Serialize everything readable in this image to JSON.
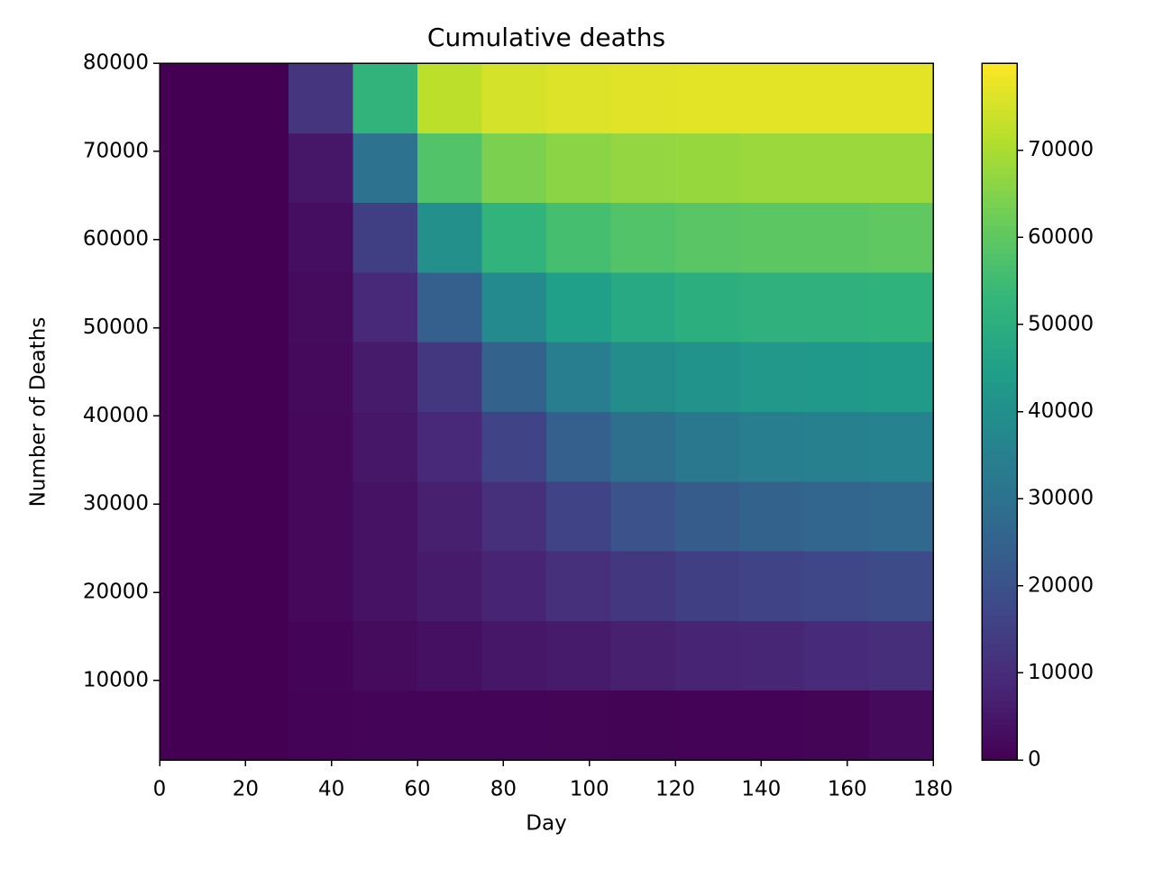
{
  "chart_data": {
    "type": "heatmap",
    "title": "Cumulative deaths",
    "xlabel": "Day",
    "ylabel": "Number of Deaths",
    "colormap": "viridis",
    "xbins": [
      0,
      15,
      30,
      45,
      60,
      75,
      90,
      105,
      120,
      135,
      150,
      165,
      180
    ],
    "ybins": [
      1000,
      8900,
      16800,
      24700,
      32600,
      40500,
      48400,
      56300,
      64200,
      72100,
      80000
    ],
    "z": [
      [
        0,
        0,
        500,
        1000,
        1000,
        1000,
        800,
        600,
        500,
        400,
        800,
        2000
      ],
      [
        0,
        0,
        1000,
        2500,
        3500,
        5000,
        6000,
        7000,
        8000,
        8500,
        9500,
        10500
      ],
      [
        0,
        0,
        1500,
        4000,
        6000,
        8000,
        11000,
        13000,
        15000,
        16000,
        17000,
        18000
      ],
      [
        0,
        0,
        1500,
        4000,
        7000,
        11000,
        16000,
        20000,
        23000,
        25000,
        26000,
        27000
      ],
      [
        0,
        0,
        1500,
        5000,
        9000,
        16000,
        24000,
        29000,
        32000,
        34000,
        35000,
        35500
      ],
      [
        0,
        0,
        2000,
        6000,
        13000,
        25000,
        34000,
        39000,
        41000,
        42500,
        43000,
        43500
      ],
      [
        0,
        0,
        2500,
        9000,
        24000,
        38000,
        45000,
        48000,
        50000,
        51000,
        51000,
        51500
      ],
      [
        0,
        0,
        3000,
        15000,
        40000,
        52000,
        56000,
        58000,
        59000,
        59500,
        59500,
        60000
      ],
      [
        0,
        0,
        5000,
        30000,
        58000,
        64000,
        66000,
        67000,
        67500,
        68000,
        68000,
        68000
      ],
      [
        0,
        0,
        12000,
        52000,
        72000,
        75000,
        76000,
        76500,
        77000,
        77000,
        77000,
        77000
      ]
    ],
    "xlim": [
      0,
      180
    ],
    "xticks": [
      0,
      20,
      40,
      60,
      80,
      100,
      120,
      140,
      160,
      180
    ],
    "ylim": [
      1000,
      80000
    ],
    "yticks": [
      10000,
      20000,
      30000,
      40000,
      50000,
      60000,
      70000,
      80000
    ],
    "clim": [
      0,
      80000
    ],
    "cticks": [
      0,
      10000,
      20000,
      30000,
      40000,
      50000,
      60000,
      70000
    ]
  }
}
